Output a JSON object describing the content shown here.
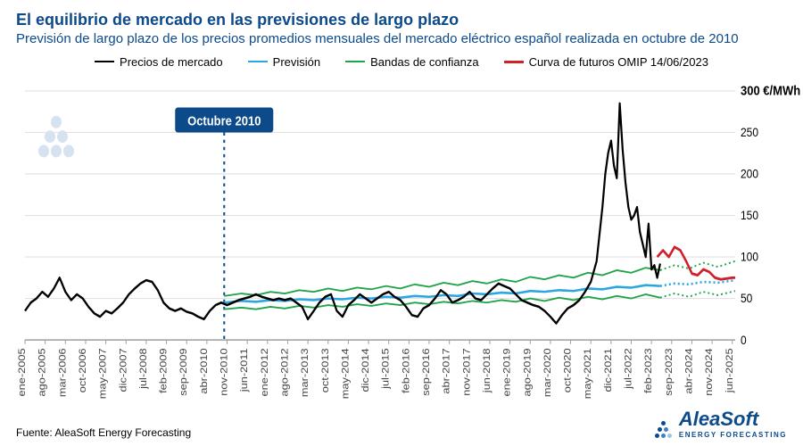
{
  "title": "El equilibrio de mercado en las previsiones de largo plazo",
  "subtitle": "Previsión de largo plazo de los precios promedios mensuales del mercado eléctrico español realizada en octubre de 2010",
  "source": "Fuente: AleaSoft Energy Forecasting",
  "brand_main": "AleaSoft",
  "brand_sub": "ENERGY FORECASTING",
  "annotation": "Octubre 2010",
  "unit_label": "300 €/MWh",
  "legend": {
    "market": {
      "label": "Precios de mercado",
      "color": "#000000",
      "width": 2.2
    },
    "forecast": {
      "label": "Previsión",
      "color": "#2aa7e0",
      "width": 2.2
    },
    "bands": {
      "label": "Bandas de confianza",
      "color": "#1fa44a",
      "width": 1.6
    },
    "futures": {
      "label": "Curva de futuros OMIP 14/06/2023",
      "color": "#d0212a",
      "width": 2.5
    }
  },
  "chart": {
    "type": "line",
    "background_color": "#ffffff",
    "gridline_color": "#e2e2e2",
    "baseline_color": "#9e9e9e",
    "annotation_line_color": "#0c4a8a",
    "text_color": "#000000",
    "ylim": [
      0,
      300
    ],
    "yticks": [
      0,
      50,
      100,
      150,
      200,
      250,
      300
    ],
    "x_index_range": [
      0,
      246
    ],
    "annotation_x_index": 69,
    "forecast_extension_start_index": 220,
    "xticks": [
      {
        "i": 0,
        "label": "ene-2005"
      },
      {
        "i": 7,
        "label": "ago-2005"
      },
      {
        "i": 14,
        "label": "mar-2006"
      },
      {
        "i": 21,
        "label": "oct-2006"
      },
      {
        "i": 28,
        "label": "may-2007"
      },
      {
        "i": 35,
        "label": "dic-2007"
      },
      {
        "i": 42,
        "label": "jul-2008"
      },
      {
        "i": 49,
        "label": "feb-2009"
      },
      {
        "i": 56,
        "label": "sep-2009"
      },
      {
        "i": 63,
        "label": "abr-2010"
      },
      {
        "i": 70,
        "label": "nov-2010"
      },
      {
        "i": 77,
        "label": "jun-2011"
      },
      {
        "i": 84,
        "label": "ene-2012"
      },
      {
        "i": 91,
        "label": "ago-2012"
      },
      {
        "i": 98,
        "label": "mar-2013"
      },
      {
        "i": 105,
        "label": "oct-2013"
      },
      {
        "i": 112,
        "label": "may-2014"
      },
      {
        "i": 119,
        "label": "dic-2014"
      },
      {
        "i": 126,
        "label": "jul-2015"
      },
      {
        "i": 133,
        "label": "feb-2016"
      },
      {
        "i": 140,
        "label": "sep-2016"
      },
      {
        "i": 147,
        "label": "abr-2017"
      },
      {
        "i": 154,
        "label": "nov-2017"
      },
      {
        "i": 161,
        "label": "jun-2018"
      },
      {
        "i": 168,
        "label": "ene-2019"
      },
      {
        "i": 175,
        "label": "ago-2019"
      },
      {
        "i": 182,
        "label": "mar-2020"
      },
      {
        "i": 189,
        "label": "oct-2020"
      },
      {
        "i": 196,
        "label": "may-2021"
      },
      {
        "i": 203,
        "label": "dic-2021"
      },
      {
        "i": 210,
        "label": "jul-2022"
      },
      {
        "i": 217,
        "label": "feb-2023"
      },
      {
        "i": 224,
        "label": "sep-2023"
      },
      {
        "i": 231,
        "label": "abr-2024"
      },
      {
        "i": 238,
        "label": "nov-2024"
      },
      {
        "i": 245,
        "label": "jun-2025"
      }
    ],
    "series": {
      "market": [
        {
          "i": 0,
          "v": 35
        },
        {
          "i": 2,
          "v": 45
        },
        {
          "i": 4,
          "v": 50
        },
        {
          "i": 6,
          "v": 58
        },
        {
          "i": 8,
          "v": 52
        },
        {
          "i": 10,
          "v": 62
        },
        {
          "i": 12,
          "v": 75
        },
        {
          "i": 14,
          "v": 58
        },
        {
          "i": 16,
          "v": 48
        },
        {
          "i": 18,
          "v": 55
        },
        {
          "i": 20,
          "v": 50
        },
        {
          "i": 22,
          "v": 40
        },
        {
          "i": 24,
          "v": 32
        },
        {
          "i": 26,
          "v": 28
        },
        {
          "i": 28,
          "v": 35
        },
        {
          "i": 30,
          "v": 32
        },
        {
          "i": 32,
          "v": 38
        },
        {
          "i": 34,
          "v": 45
        },
        {
          "i": 36,
          "v": 55
        },
        {
          "i": 38,
          "v": 62
        },
        {
          "i": 40,
          "v": 68
        },
        {
          "i": 42,
          "v": 72
        },
        {
          "i": 44,
          "v": 70
        },
        {
          "i": 46,
          "v": 60
        },
        {
          "i": 48,
          "v": 45
        },
        {
          "i": 50,
          "v": 38
        },
        {
          "i": 52,
          "v": 35
        },
        {
          "i": 54,
          "v": 38
        },
        {
          "i": 56,
          "v": 34
        },
        {
          "i": 58,
          "v": 32
        },
        {
          "i": 60,
          "v": 28
        },
        {
          "i": 62,
          "v": 25
        },
        {
          "i": 64,
          "v": 35
        },
        {
          "i": 66,
          "v": 42
        },
        {
          "i": 68,
          "v": 45
        },
        {
          "i": 70,
          "v": 42
        },
        {
          "i": 72,
          "v": 45
        },
        {
          "i": 74,
          "v": 48
        },
        {
          "i": 76,
          "v": 50
        },
        {
          "i": 78,
          "v": 52
        },
        {
          "i": 80,
          "v": 55
        },
        {
          "i": 82,
          "v": 52
        },
        {
          "i": 84,
          "v": 50
        },
        {
          "i": 86,
          "v": 48
        },
        {
          "i": 88,
          "v": 50
        },
        {
          "i": 90,
          "v": 48
        },
        {
          "i": 92,
          "v": 50
        },
        {
          "i": 94,
          "v": 45
        },
        {
          "i": 96,
          "v": 40
        },
        {
          "i": 98,
          "v": 25
        },
        {
          "i": 100,
          "v": 35
        },
        {
          "i": 102,
          "v": 45
        },
        {
          "i": 104,
          "v": 52
        },
        {
          "i": 106,
          "v": 55
        },
        {
          "i": 108,
          "v": 35
        },
        {
          "i": 110,
          "v": 28
        },
        {
          "i": 112,
          "v": 42
        },
        {
          "i": 114,
          "v": 48
        },
        {
          "i": 116,
          "v": 55
        },
        {
          "i": 118,
          "v": 50
        },
        {
          "i": 120,
          "v": 45
        },
        {
          "i": 122,
          "v": 50
        },
        {
          "i": 124,
          "v": 55
        },
        {
          "i": 126,
          "v": 58
        },
        {
          "i": 128,
          "v": 52
        },
        {
          "i": 130,
          "v": 48
        },
        {
          "i": 132,
          "v": 40
        },
        {
          "i": 134,
          "v": 30
        },
        {
          "i": 136,
          "v": 28
        },
        {
          "i": 138,
          "v": 38
        },
        {
          "i": 140,
          "v": 42
        },
        {
          "i": 142,
          "v": 50
        },
        {
          "i": 144,
          "v": 60
        },
        {
          "i": 146,
          "v": 55
        },
        {
          "i": 148,
          "v": 45
        },
        {
          "i": 150,
          "v": 48
        },
        {
          "i": 152,
          "v": 52
        },
        {
          "i": 154,
          "v": 58
        },
        {
          "i": 156,
          "v": 50
        },
        {
          "i": 158,
          "v": 48
        },
        {
          "i": 160,
          "v": 55
        },
        {
          "i": 162,
          "v": 62
        },
        {
          "i": 164,
          "v": 68
        },
        {
          "i": 166,
          "v": 65
        },
        {
          "i": 168,
          "v": 62
        },
        {
          "i": 170,
          "v": 55
        },
        {
          "i": 172,
          "v": 48
        },
        {
          "i": 174,
          "v": 45
        },
        {
          "i": 176,
          "v": 42
        },
        {
          "i": 178,
          "v": 40
        },
        {
          "i": 180,
          "v": 35
        },
        {
          "i": 182,
          "v": 28
        },
        {
          "i": 184,
          "v": 20
        },
        {
          "i": 186,
          "v": 30
        },
        {
          "i": 188,
          "v": 38
        },
        {
          "i": 190,
          "v": 42
        },
        {
          "i": 192,
          "v": 48
        },
        {
          "i": 194,
          "v": 58
        },
        {
          "i": 196,
          "v": 70
        },
        {
          "i": 198,
          "v": 95
        },
        {
          "i": 200,
          "v": 160
        },
        {
          "i": 201,
          "v": 200
        },
        {
          "i": 202,
          "v": 225
        },
        {
          "i": 203,
          "v": 240
        },
        {
          "i": 204,
          "v": 210
        },
        {
          "i": 205,
          "v": 195
        },
        {
          "i": 206,
          "v": 285
        },
        {
          "i": 207,
          "v": 230
        },
        {
          "i": 208,
          "v": 190
        },
        {
          "i": 209,
          "v": 160
        },
        {
          "i": 210,
          "v": 145
        },
        {
          "i": 211,
          "v": 150
        },
        {
          "i": 212,
          "v": 160
        },
        {
          "i": 213,
          "v": 130
        },
        {
          "i": 214,
          "v": 115
        },
        {
          "i": 215,
          "v": 100
        },
        {
          "i": 216,
          "v": 140
        },
        {
          "i": 217,
          "v": 85
        },
        {
          "i": 218,
          "v": 90
        },
        {
          "i": 219,
          "v": 75
        },
        {
          "i": 220,
          "v": 92
        }
      ],
      "forecast": [
        {
          "i": 69,
          "v": 45
        },
        {
          "i": 75,
          "v": 47
        },
        {
          "i": 80,
          "v": 46
        },
        {
          "i": 85,
          "v": 48
        },
        {
          "i": 90,
          "v": 47
        },
        {
          "i": 95,
          "v": 49
        },
        {
          "i": 100,
          "v": 48
        },
        {
          "i": 105,
          "v": 50
        },
        {
          "i": 110,
          "v": 49
        },
        {
          "i": 115,
          "v": 51
        },
        {
          "i": 120,
          "v": 50
        },
        {
          "i": 125,
          "v": 52
        },
        {
          "i": 130,
          "v": 51
        },
        {
          "i": 135,
          "v": 53
        },
        {
          "i": 140,
          "v": 52
        },
        {
          "i": 145,
          "v": 54
        },
        {
          "i": 150,
          "v": 53
        },
        {
          "i": 155,
          "v": 56
        },
        {
          "i": 160,
          "v": 55
        },
        {
          "i": 165,
          "v": 57
        },
        {
          "i": 170,
          "v": 56
        },
        {
          "i": 175,
          "v": 59
        },
        {
          "i": 180,
          "v": 58
        },
        {
          "i": 185,
          "v": 60
        },
        {
          "i": 190,
          "v": 59
        },
        {
          "i": 195,
          "v": 62
        },
        {
          "i": 200,
          "v": 61
        },
        {
          "i": 205,
          "v": 64
        },
        {
          "i": 210,
          "v": 63
        },
        {
          "i": 215,
          "v": 66
        },
        {
          "i": 220,
          "v": 65
        },
        {
          "i": 225,
          "v": 68
        },
        {
          "i": 230,
          "v": 67
        },
        {
          "i": 235,
          "v": 70
        },
        {
          "i": 240,
          "v": 69
        },
        {
          "i": 246,
          "v": 72
        }
      ],
      "band_upper": [
        {
          "i": 69,
          "v": 53
        },
        {
          "i": 75,
          "v": 56
        },
        {
          "i": 80,
          "v": 54
        },
        {
          "i": 85,
          "v": 58
        },
        {
          "i": 90,
          "v": 56
        },
        {
          "i": 95,
          "v": 60
        },
        {
          "i": 100,
          "v": 58
        },
        {
          "i": 105,
          "v": 62
        },
        {
          "i": 110,
          "v": 59
        },
        {
          "i": 115,
          "v": 63
        },
        {
          "i": 120,
          "v": 61
        },
        {
          "i": 125,
          "v": 65
        },
        {
          "i": 130,
          "v": 62
        },
        {
          "i": 135,
          "v": 67
        },
        {
          "i": 140,
          "v": 64
        },
        {
          "i": 145,
          "v": 69
        },
        {
          "i": 150,
          "v": 66
        },
        {
          "i": 155,
          "v": 71
        },
        {
          "i": 160,
          "v": 68
        },
        {
          "i": 165,
          "v": 73
        },
        {
          "i": 170,
          "v": 70
        },
        {
          "i": 175,
          "v": 76
        },
        {
          "i": 180,
          "v": 73
        },
        {
          "i": 185,
          "v": 78
        },
        {
          "i": 190,
          "v": 75
        },
        {
          "i": 195,
          "v": 81
        },
        {
          "i": 200,
          "v": 78
        },
        {
          "i": 205,
          "v": 84
        },
        {
          "i": 210,
          "v": 81
        },
        {
          "i": 215,
          "v": 87
        },
        {
          "i": 220,
          "v": 84
        },
        {
          "i": 225,
          "v": 90
        },
        {
          "i": 230,
          "v": 86
        },
        {
          "i": 235,
          "v": 93
        },
        {
          "i": 240,
          "v": 88
        },
        {
          "i": 246,
          "v": 95
        }
      ],
      "band_lower": [
        {
          "i": 69,
          "v": 37
        },
        {
          "i": 75,
          "v": 39
        },
        {
          "i": 80,
          "v": 37
        },
        {
          "i": 85,
          "v": 40
        },
        {
          "i": 90,
          "v": 38
        },
        {
          "i": 95,
          "v": 41
        },
        {
          "i": 100,
          "v": 39
        },
        {
          "i": 105,
          "v": 42
        },
        {
          "i": 110,
          "v": 40
        },
        {
          "i": 115,
          "v": 43
        },
        {
          "i": 120,
          "v": 41
        },
        {
          "i": 125,
          "v": 44
        },
        {
          "i": 130,
          "v": 42
        },
        {
          "i": 135,
          "v": 45
        },
        {
          "i": 140,
          "v": 43
        },
        {
          "i": 145,
          "v": 46
        },
        {
          "i": 150,
          "v": 44
        },
        {
          "i": 155,
          "v": 47
        },
        {
          "i": 160,
          "v": 45
        },
        {
          "i": 165,
          "v": 48
        },
        {
          "i": 170,
          "v": 46
        },
        {
          "i": 175,
          "v": 50
        },
        {
          "i": 180,
          "v": 47
        },
        {
          "i": 185,
          "v": 51
        },
        {
          "i": 190,
          "v": 48
        },
        {
          "i": 195,
          "v": 52
        },
        {
          "i": 200,
          "v": 49
        },
        {
          "i": 205,
          "v": 53
        },
        {
          "i": 210,
          "v": 50
        },
        {
          "i": 215,
          "v": 55
        },
        {
          "i": 220,
          "v": 51
        },
        {
          "i": 225,
          "v": 56
        },
        {
          "i": 230,
          "v": 52
        },
        {
          "i": 235,
          "v": 58
        },
        {
          "i": 240,
          "v": 54
        },
        {
          "i": 246,
          "v": 59
        }
      ],
      "futures": [
        {
          "i": 219,
          "v": 100
        },
        {
          "i": 221,
          "v": 108
        },
        {
          "i": 223,
          "v": 100
        },
        {
          "i": 225,
          "v": 112
        },
        {
          "i": 227,
          "v": 108
        },
        {
          "i": 229,
          "v": 95
        },
        {
          "i": 231,
          "v": 80
        },
        {
          "i": 233,
          "v": 78
        },
        {
          "i": 235,
          "v": 85
        },
        {
          "i": 237,
          "v": 82
        },
        {
          "i": 239,
          "v": 75
        },
        {
          "i": 241,
          "v": 73
        },
        {
          "i": 243,
          "v": 74
        },
        {
          "i": 245,
          "v": 75
        },
        {
          "i": 246,
          "v": 75
        }
      ]
    }
  }
}
